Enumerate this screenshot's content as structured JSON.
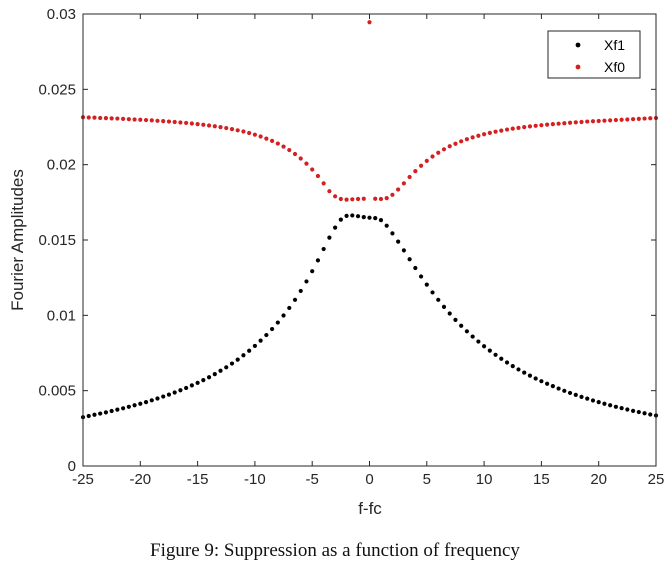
{
  "chart_data": {
    "type": "scatter",
    "title": "",
    "xlabel": "f-fc",
    "ylabel": "Fourier Amplitudes",
    "xlim": [
      -25,
      25
    ],
    "ylim": [
      0,
      0.03
    ],
    "xticks": [
      -25,
      -20,
      -15,
      -10,
      -5,
      0,
      5,
      10,
      15,
      20,
      25
    ],
    "xtick_labels": [
      "-25",
      "-20",
      "-15",
      "-10",
      "-5",
      "0",
      "5",
      "10",
      "15",
      "20",
      "25"
    ],
    "yticks": [
      0,
      0.005,
      0.01,
      0.015,
      0.02,
      0.025,
      0.03
    ],
    "ytick_labels": [
      "0",
      "0.005",
      "0.01",
      "0.015",
      "0.02",
      "0.025",
      "0.03"
    ],
    "grid": false,
    "legend_position": "top-right",
    "x": [
      -25,
      -24.5,
      -24,
      -23.5,
      -23,
      -22.5,
      -22,
      -21.5,
      -21,
      -20.5,
      -20,
      -19.5,
      -19,
      -18.5,
      -18,
      -17.5,
      -17,
      -16.5,
      -16,
      -15.5,
      -15,
      -14.5,
      -14,
      -13.5,
      -13,
      -12.5,
      -12,
      -11.5,
      -11,
      -10.5,
      -10,
      -9.5,
      -9,
      -8.5,
      -8,
      -7.5,
      -7,
      -6.5,
      -6,
      -5.5,
      -5,
      -4.5,
      -4,
      -3.5,
      -3,
      -2.5,
      -2,
      -1.5,
      -1,
      -0.5,
      0,
      0.5,
      1,
      1.5,
      2,
      2.5,
      3,
      3.5,
      4,
      4.5,
      5,
      5.5,
      6,
      6.5,
      7,
      7.5,
      8,
      8.5,
      9,
      9.5,
      10,
      10.5,
      11,
      11.5,
      12,
      12.5,
      13,
      13.5,
      14,
      14.5,
      15,
      15.5,
      16,
      16.5,
      17,
      17.5,
      18,
      18.5,
      19,
      19.5,
      20,
      20.5,
      21,
      21.5,
      22,
      22.5,
      23,
      23.5,
      24,
      24.5,
      25
    ],
    "series": [
      {
        "name": "Xf1",
        "color": "#000000",
        "marker": "dot",
        "values": [
          0.00324,
          0.00332,
          0.0034,
          0.00348,
          0.00356,
          0.00365,
          0.00374,
          0.00383,
          0.00393,
          0.00403,
          0.00413,
          0.00424,
          0.00436,
          0.00448,
          0.00461,
          0.00474,
          0.00488,
          0.00503,
          0.00518,
          0.00535,
          0.00552,
          0.0057,
          0.00589,
          0.0061,
          0.00632,
          0.00655,
          0.0068,
          0.00706,
          0.00735,
          0.00765,
          0.00797,
          0.00832,
          0.00869,
          0.00909,
          0.00952,
          0.00999,
          0.01049,
          0.01103,
          0.01162,
          0.01225,
          0.01293,
          0.01365,
          0.0144,
          0.01516,
          0.01582,
          0.01635,
          0.0166,
          0.01663,
          0.01658,
          0.01652,
          0.01648,
          0.01645,
          0.01632,
          0.01595,
          0.01544,
          0.01489,
          0.01431,
          0.01372,
          0.01314,
          0.01258,
          0.01204,
          0.01152,
          0.01103,
          0.01056,
          0.01012,
          0.0097,
          0.00931,
          0.00894,
          0.00859,
          0.00826,
          0.00795,
          0.00766,
          0.00738,
          0.00712,
          0.00687,
          0.00663,
          0.00641,
          0.0062,
          0.006,
          0.00581,
          0.00563,
          0.00546,
          0.0053,
          0.00514,
          0.00499,
          0.00485,
          0.00472,
          0.00459,
          0.00447,
          0.00435,
          0.00424,
          0.00413,
          0.00403,
          0.00393,
          0.00384,
          0.00375,
          0.00366,
          0.00358,
          0.0035,
          0.00342,
          0.00335
        ]
      },
      {
        "name": "Xf0",
        "color": "#d42020",
        "marker": "dot",
        "values": [
          0.02315,
          0.02313,
          0.02312,
          0.0231,
          0.02309,
          0.02307,
          0.02306,
          0.02304,
          0.02302,
          0.023,
          0.02298,
          0.02296,
          0.02294,
          0.02291,
          0.02289,
          0.02286,
          0.02283,
          0.0228,
          0.02277,
          0.02273,
          0.02269,
          0.02265,
          0.0226,
          0.02255,
          0.02249,
          0.02243,
          0.02236,
          0.02228,
          0.0222,
          0.0221,
          0.02199,
          0.02187,
          0.02173,
          0.02158,
          0.0214,
          0.0212,
          0.02097,
          0.02071,
          0.02041,
          0.02007,
          0.01968,
          0.01925,
          0.01876,
          0.01824,
          0.0179,
          0.01772,
          0.01768,
          0.0177,
          0.01772,
          0.01774,
          0.02945,
          0.01774,
          0.01772,
          0.01778,
          0.018,
          0.01835,
          0.01876,
          0.01918,
          0.01957,
          0.01993,
          0.02025,
          0.02054,
          0.02079,
          0.02102,
          0.02122,
          0.02139,
          0.02155,
          0.02169,
          0.02181,
          0.02192,
          0.02202,
          0.02211,
          0.02219,
          0.02226,
          0.02233,
          0.02239,
          0.02244,
          0.02249,
          0.02254,
          0.02258,
          0.02262,
          0.02266,
          0.02269,
          0.02272,
          0.02275,
          0.02278,
          0.02281,
          0.02283,
          0.02286,
          0.02288,
          0.0229,
          0.02292,
          0.02294,
          0.02296,
          0.02298,
          0.023,
          0.02302,
          0.02304,
          0.02306,
          0.02308,
          0.0231
        ]
      }
    ]
  },
  "caption": "Figure 9: Suppression as a function of frequency"
}
